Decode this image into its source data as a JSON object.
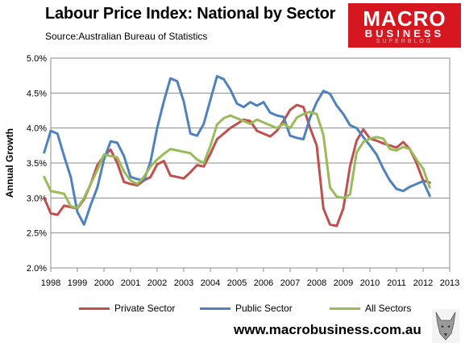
{
  "header": {
    "title": "Labour Price Index: National by Sector",
    "source": "Source:Australian Bureau of Statistics"
  },
  "logo": {
    "line1": "MACRO",
    "line2": "BUSINESS",
    "line3": "SUPERBLOG"
  },
  "footer": {
    "url": "www.macrobusiness.com.au"
  },
  "colors": {
    "private": "#c0504d",
    "public": "#4f81bd",
    "all": "#9bbb59",
    "logo": "#d7171f"
  },
  "chart_data": {
    "type": "line",
    "title": "Labour Price Index: National by Sector",
    "subtitle": "Source:Australian Bureau of Statistics",
    "xlabel": "",
    "ylabel": "Annual Growth",
    "xlim": [
      1998,
      2013
    ],
    "ylim": [
      2.0,
      5.0
    ],
    "x_ticks": [
      "1998",
      "1999",
      "2000",
      "2001",
      "2002",
      "2003",
      "2004",
      "2005",
      "2006",
      "2007",
      "2008",
      "2009",
      "2010",
      "2011",
      "2012",
      "2013"
    ],
    "y_ticks": [
      "2.0%",
      "2.5%",
      "3.0%",
      "3.5%",
      "4.0%",
      "4.5%",
      "5.0%"
    ],
    "grid": "horizontal",
    "legend_position": "bottom",
    "x": [
      1997.75,
      1998.0,
      1998.25,
      1998.5,
      1998.75,
      1999.0,
      1999.25,
      1999.5,
      1999.75,
      2000.0,
      2000.25,
      2000.5,
      2000.75,
      2001.0,
      2001.25,
      2001.5,
      2001.75,
      2002.0,
      2002.25,
      2002.5,
      2002.75,
      2003.0,
      2003.25,
      2003.5,
      2003.75,
      2004.0,
      2004.25,
      2004.5,
      2004.75,
      2005.0,
      2005.25,
      2005.5,
      2005.75,
      2006.0,
      2006.25,
      2006.5,
      2006.75,
      2007.0,
      2007.25,
      2007.5,
      2007.75,
      2008.0,
      2008.25,
      2008.5,
      2008.75,
      2009.0,
      2009.25,
      2009.5,
      2009.75,
      2010.0,
      2010.25,
      2010.5,
      2010.75,
      2011.0,
      2011.25,
      2011.5,
      2011.75,
      2012.0,
      2012.25
    ],
    "series": [
      {
        "name": "Private Sector",
        "values": [
          3.0,
          2.78,
          2.76,
          2.89,
          2.87,
          2.85,
          2.98,
          3.2,
          3.47,
          3.6,
          3.69,
          3.5,
          3.23,
          3.2,
          3.18,
          3.25,
          3.3,
          3.48,
          3.53,
          3.32,
          3.3,
          3.28,
          3.37,
          3.47,
          3.45,
          3.63,
          3.84,
          3.92,
          4.0,
          4.06,
          4.12,
          4.1,
          3.96,
          3.92,
          3.88,
          3.96,
          4.1,
          4.26,
          4.33,
          4.3,
          4.0,
          3.75,
          2.85,
          2.62,
          2.6,
          2.85,
          3.45,
          3.82,
          3.98,
          3.85,
          3.82,
          3.78,
          3.75,
          3.72,
          3.8,
          3.7,
          3.5,
          3.25,
          3.22
        ]
      },
      {
        "name": "Public Sector",
        "values": [
          3.65,
          3.96,
          3.92,
          3.6,
          3.3,
          2.8,
          2.62,
          2.9,
          3.15,
          3.55,
          3.81,
          3.79,
          3.6,
          3.3,
          3.27,
          3.25,
          3.52,
          4.0,
          4.38,
          4.71,
          4.67,
          4.38,
          3.92,
          3.89,
          4.06,
          4.4,
          4.74,
          4.7,
          4.55,
          4.35,
          4.3,
          4.37,
          4.32,
          4.37,
          4.22,
          4.18,
          4.16,
          3.89,
          3.86,
          3.84,
          4.15,
          4.37,
          4.53,
          4.49,
          4.32,
          4.2,
          4.04,
          4.0,
          3.87,
          3.75,
          3.62,
          3.42,
          3.25,
          3.13,
          3.1,
          3.16,
          3.2,
          3.24,
          3.03
        ]
      },
      {
        "name": "All Sectors",
        "values": [
          3.3,
          3.1,
          3.08,
          3.06,
          2.88,
          2.86,
          3.0,
          3.2,
          3.4,
          3.62,
          3.6,
          3.58,
          3.38,
          3.25,
          3.2,
          3.3,
          3.45,
          3.55,
          3.63,
          3.7,
          3.68,
          3.66,
          3.64,
          3.55,
          3.5,
          3.74,
          4.05,
          4.14,
          4.18,
          4.14,
          4.1,
          4.06,
          4.12,
          4.08,
          4.04,
          4.0,
          4.06,
          4.0,
          4.15,
          4.2,
          4.23,
          4.2,
          3.9,
          3.15,
          3.02,
          3.0,
          3.05,
          3.65,
          3.8,
          3.85,
          3.87,
          3.85,
          3.7,
          3.68,
          3.73,
          3.7,
          3.55,
          3.42,
          3.15
        ]
      }
    ]
  }
}
